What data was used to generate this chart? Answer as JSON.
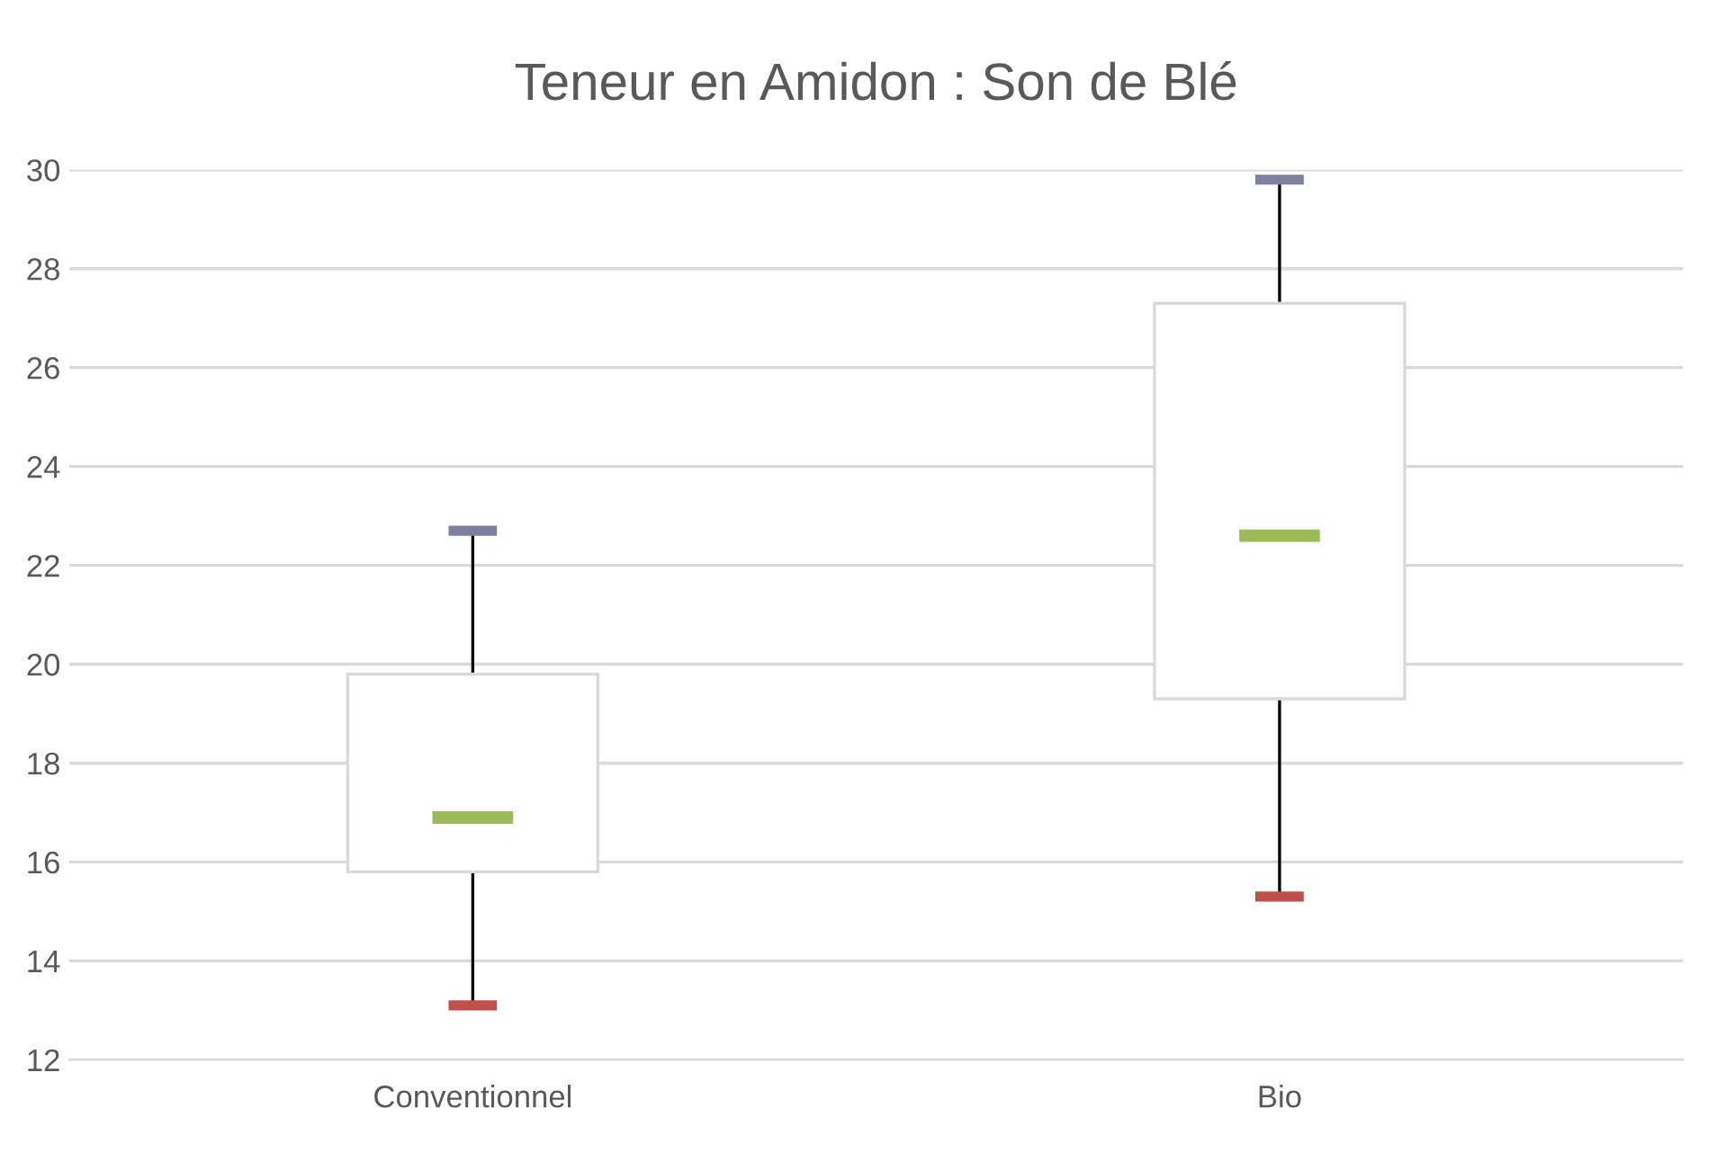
{
  "chart_data": {
    "type": "box",
    "title": "Teneur en Amidon : Son de Blé",
    "categories": [
      "Conventionnel",
      "Bio"
    ],
    "boxes": [
      {
        "low": 13.1,
        "q1": 15.8,
        "median": 16.9,
        "q3": 19.8,
        "high": 22.7
      },
      {
        "low": 15.3,
        "q1": 19.3,
        "median": 22.6,
        "q3": 27.3,
        "high": 29.8
      }
    ],
    "color": "#ffffff",
    "ylim": [
      12,
      30
    ],
    "yticks": [
      12,
      14,
      16,
      18,
      20,
      22,
      24,
      26,
      28,
      30
    ],
    "grid": "y",
    "legend": false
  }
}
